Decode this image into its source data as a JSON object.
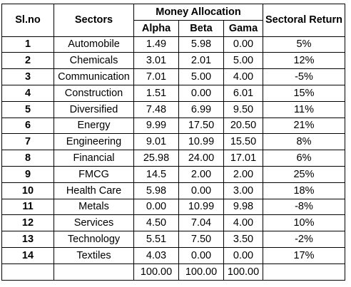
{
  "headers": {
    "slno": "Sl.no",
    "sectors": "Sectors",
    "money_allocation": "Money Allocation",
    "alpha": "Alpha",
    "beta": "Beta",
    "gama": "Gama",
    "sectoral_return": "Sectoral Return"
  },
  "rows": [
    {
      "no": "1",
      "sector": "Automobile",
      "alpha": "1.49",
      "beta": "5.98",
      "gama": "0.00",
      "ret": "5%"
    },
    {
      "no": "2",
      "sector": "Chemicals",
      "alpha": "3.01",
      "beta": "2.01",
      "gama": "5.00",
      "ret": "12%"
    },
    {
      "no": "3",
      "sector": "Communication",
      "alpha": "7.01",
      "beta": "5.00",
      "gama": "4.00",
      "ret": "-5%"
    },
    {
      "no": "4",
      "sector": "Construction",
      "alpha": "1.51",
      "beta": "0.00",
      "gama": "6.01",
      "ret": "15%"
    },
    {
      "no": "5",
      "sector": "Diversified",
      "alpha": "7.48",
      "beta": "6.99",
      "gama": "9.50",
      "ret": "11%"
    },
    {
      "no": "6",
      "sector": "Energy",
      "alpha": "9.99",
      "beta": "17.50",
      "gama": "20.50",
      "ret": "21%"
    },
    {
      "no": "7",
      "sector": "Engineering",
      "alpha": "9.01",
      "beta": "10.99",
      "gama": "15.50",
      "ret": "8%"
    },
    {
      "no": "8",
      "sector": "Financial",
      "alpha": "25.98",
      "beta": "24.00",
      "gama": "17.01",
      "ret": "6%"
    },
    {
      "no": "9",
      "sector": "FMCG",
      "alpha": "14.5",
      "beta": "2.00",
      "gama": "2.00",
      "ret": "25%"
    },
    {
      "no": "10",
      "sector": "Health Care",
      "alpha": "5.98",
      "beta": "0.00",
      "gama": "3.00",
      "ret": "18%"
    },
    {
      "no": "11",
      "sector": "Metals",
      "alpha": "0.00",
      "beta": "10.99",
      "gama": "9.98",
      "ret": "-8%"
    },
    {
      "no": "12",
      "sector": "Services",
      "alpha": "4.50",
      "beta": "7.04",
      "gama": "4.00",
      "ret": "10%"
    },
    {
      "no": "13",
      "sector": "Technology",
      "alpha": "5.51",
      "beta": "7.50",
      "gama": "3.50",
      "ret": "-2%"
    },
    {
      "no": "14",
      "sector": "Textiles",
      "alpha": "4.03",
      "beta": "0.00",
      "gama": "0.00",
      "ret": "17%"
    }
  ],
  "totals": {
    "no": "",
    "sector": "",
    "alpha": "100.00",
    "beta": "100.00",
    "gama": "100.00",
    "ret": ""
  }
}
